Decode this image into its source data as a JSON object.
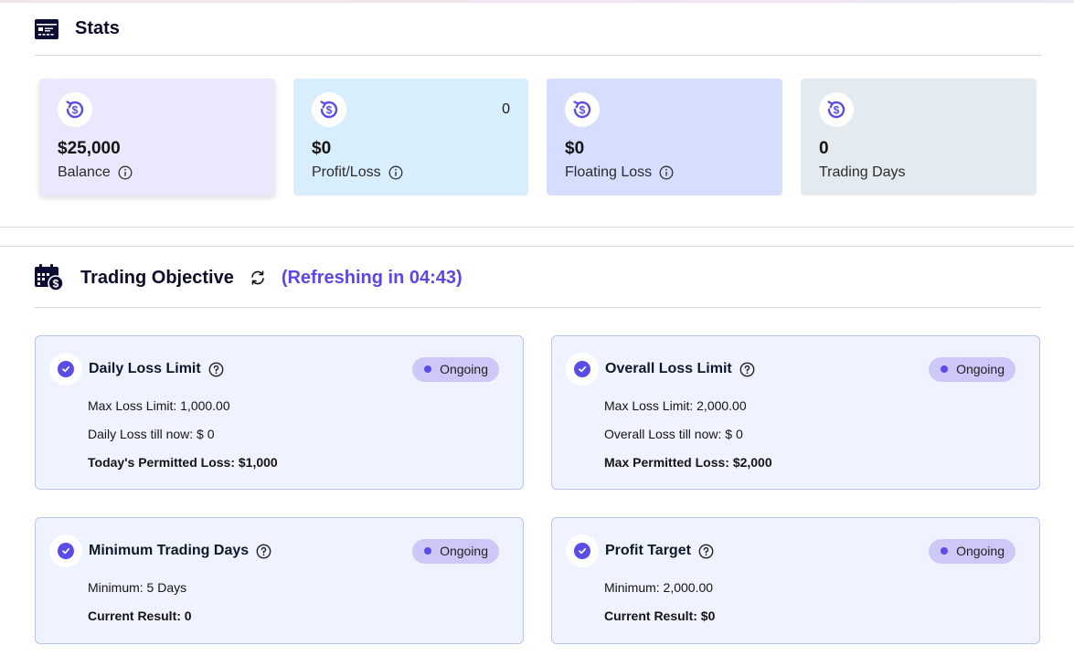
{
  "stats": {
    "title": "Stats",
    "cards": [
      {
        "value": "$25,000",
        "label": "Balance",
        "has_info": true
      },
      {
        "value": "$0",
        "label": "Profit/Loss",
        "has_info": true,
        "count": "0"
      },
      {
        "value": "$0",
        "label": "Floating Loss",
        "has_info": true
      },
      {
        "value": "0",
        "label": "Trading Days",
        "has_info": false
      }
    ]
  },
  "objective": {
    "title": "Trading Objective",
    "refresh_text": "(Refreshing in 04:43)",
    "cards": [
      {
        "title": "Daily Loss Limit",
        "status": "Ongoing",
        "lines": [
          "Max Loss Limit: 1,000.00",
          "Daily Loss till now: $ 0"
        ],
        "summary": "Today's Permitted Loss: $1,000"
      },
      {
        "title": "Overall Loss Limit",
        "status": "Ongoing",
        "lines": [
          "Max Loss Limit: 2,000.00",
          "Overall Loss till now: $ 0"
        ],
        "summary": "Max Permitted Loss: $2,000"
      },
      {
        "title": "Minimum Trading Days",
        "status": "Ongoing",
        "lines": [
          "Minimum: 5 Days"
        ],
        "summary": "Current Result: 0"
      },
      {
        "title": "Profit Target",
        "status": "Ongoing",
        "lines": [
          "Minimum: 2,000.00"
        ],
        "summary": "Current Result: $0"
      }
    ]
  },
  "colors": {
    "accent": "#5a4ce6",
    "refresh_text": "#5b47e6",
    "status_pill": "#cdc8f7"
  },
  "icons": {
    "stats": "stats-card-icon",
    "objective": "calendar-dollar-icon",
    "refresh": "refresh-icon",
    "coin": "dollar-refresh-icon",
    "info": "info-icon",
    "help": "help-circle-icon",
    "check": "check-circle-icon"
  }
}
